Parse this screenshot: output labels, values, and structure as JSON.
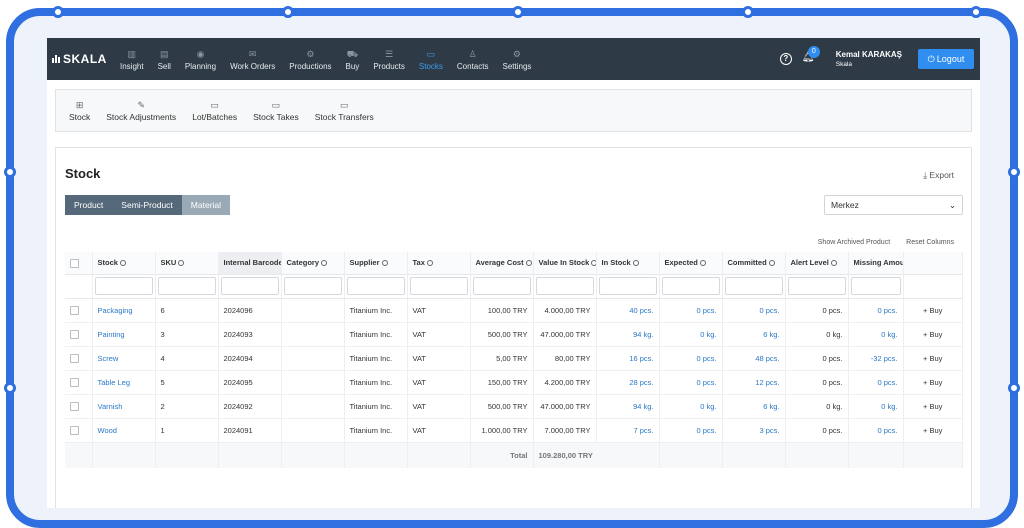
{
  "nav": {
    "logo": "SKALA",
    "items": [
      {
        "label": "Insight",
        "icon": "bar-chart-icon",
        "glyph": "▥"
      },
      {
        "label": "Sell",
        "icon": "receipt-icon",
        "glyph": "▤"
      },
      {
        "label": "Planning",
        "icon": "eye-icon",
        "glyph": "◉"
      },
      {
        "label": "Work Orders",
        "icon": "envelope-icon",
        "glyph": "✉"
      },
      {
        "label": "Productions",
        "icon": "gear-icon",
        "glyph": "⚙"
      },
      {
        "label": "Buy",
        "icon": "cart-icon",
        "glyph": "⛟"
      },
      {
        "label": "Products",
        "icon": "list-icon",
        "glyph": "☰"
      },
      {
        "label": "Stocks",
        "icon": "folder-icon",
        "glyph": "▭"
      },
      {
        "label": "Contacts",
        "icon": "user-icon",
        "glyph": "♙"
      },
      {
        "label": "Settings",
        "icon": "gear-icon",
        "glyph": "⚙"
      }
    ],
    "active": "Stocks",
    "notifications": "0",
    "user_name": "Kemal KARAKAŞ",
    "company": "Skala",
    "logout": "Logout"
  },
  "subnav": [
    {
      "label": "Stock",
      "icon": "grid-icon",
      "glyph": "⊞"
    },
    {
      "label": "Stock Adjustments",
      "icon": "pencil-icon",
      "glyph": "✎"
    },
    {
      "label": "Lot/Batches",
      "icon": "folder-icon",
      "glyph": "▭"
    },
    {
      "label": "Stock Takes",
      "icon": "folder-icon",
      "glyph": "▭"
    },
    {
      "label": "Stock Transfers",
      "icon": "folder-icon",
      "glyph": "▭"
    }
  ],
  "page": {
    "title": "Stock",
    "export": "Export",
    "tabs": [
      "Product",
      "Semi-Product",
      "Material"
    ],
    "active_tab": "Material",
    "warehouse": "Merkez",
    "show_archived": "Show Archived Product",
    "reset_columns": "Reset Columns"
  },
  "table": {
    "columns": [
      "Stock",
      "SKU",
      "Internal Barcode",
      "Category",
      "Supplier",
      "Tax",
      "Average Cost",
      "Value In Stock",
      "In Stock",
      "Expected",
      "Committed",
      "Alert Level",
      "Missing Amount"
    ],
    "rows": [
      [
        "Packaging",
        "6",
        "2024096",
        "",
        "Titanium Inc.",
        "VAT",
        "100,00 TRY",
        "4.000,00 TRY",
        "40 pcs.",
        "0 pcs.",
        "0 pcs.",
        "0 pcs.",
        "0 pcs."
      ],
      [
        "Painting",
        "3",
        "2024093",
        "",
        "Titanium Inc.",
        "VAT",
        "500,00 TRY",
        "47.000,00 TRY",
        "94 kg.",
        "0 kg.",
        "6 kg.",
        "0 kg.",
        "0 kg."
      ],
      [
        "Screw",
        "4",
        "2024094",
        "",
        "Titanium Inc.",
        "VAT",
        "5,00 TRY",
        "80,00 TRY",
        "16 pcs.",
        "0 pcs.",
        "48 pcs.",
        "0 pcs.",
        "-32 pcs."
      ],
      [
        "Table Leg",
        "5",
        "2024095",
        "",
        "Titanium Inc.",
        "VAT",
        "150,00 TRY",
        "4.200,00 TRY",
        "28 pcs.",
        "0 pcs.",
        "12 pcs.",
        "0 pcs.",
        "0 pcs."
      ],
      [
        "Varnish",
        "2",
        "2024092",
        "",
        "Titanium Inc.",
        "VAT",
        "500,00 TRY",
        "47.000,00 TRY",
        "94 kg.",
        "0 kg.",
        "6 kg.",
        "0 kg.",
        "0 kg."
      ],
      [
        "Wood",
        "1",
        "2024091",
        "",
        "Titanium Inc.",
        "VAT",
        "1.000,00 TRY",
        "7.000,00 TRY",
        "7 pcs.",
        "0 pcs.",
        "3 pcs.",
        "0 pcs.",
        "0 pcs."
      ]
    ],
    "buy_label": "+ Buy",
    "total_label": "Total",
    "total_value": "109.280,00 TRY"
  }
}
